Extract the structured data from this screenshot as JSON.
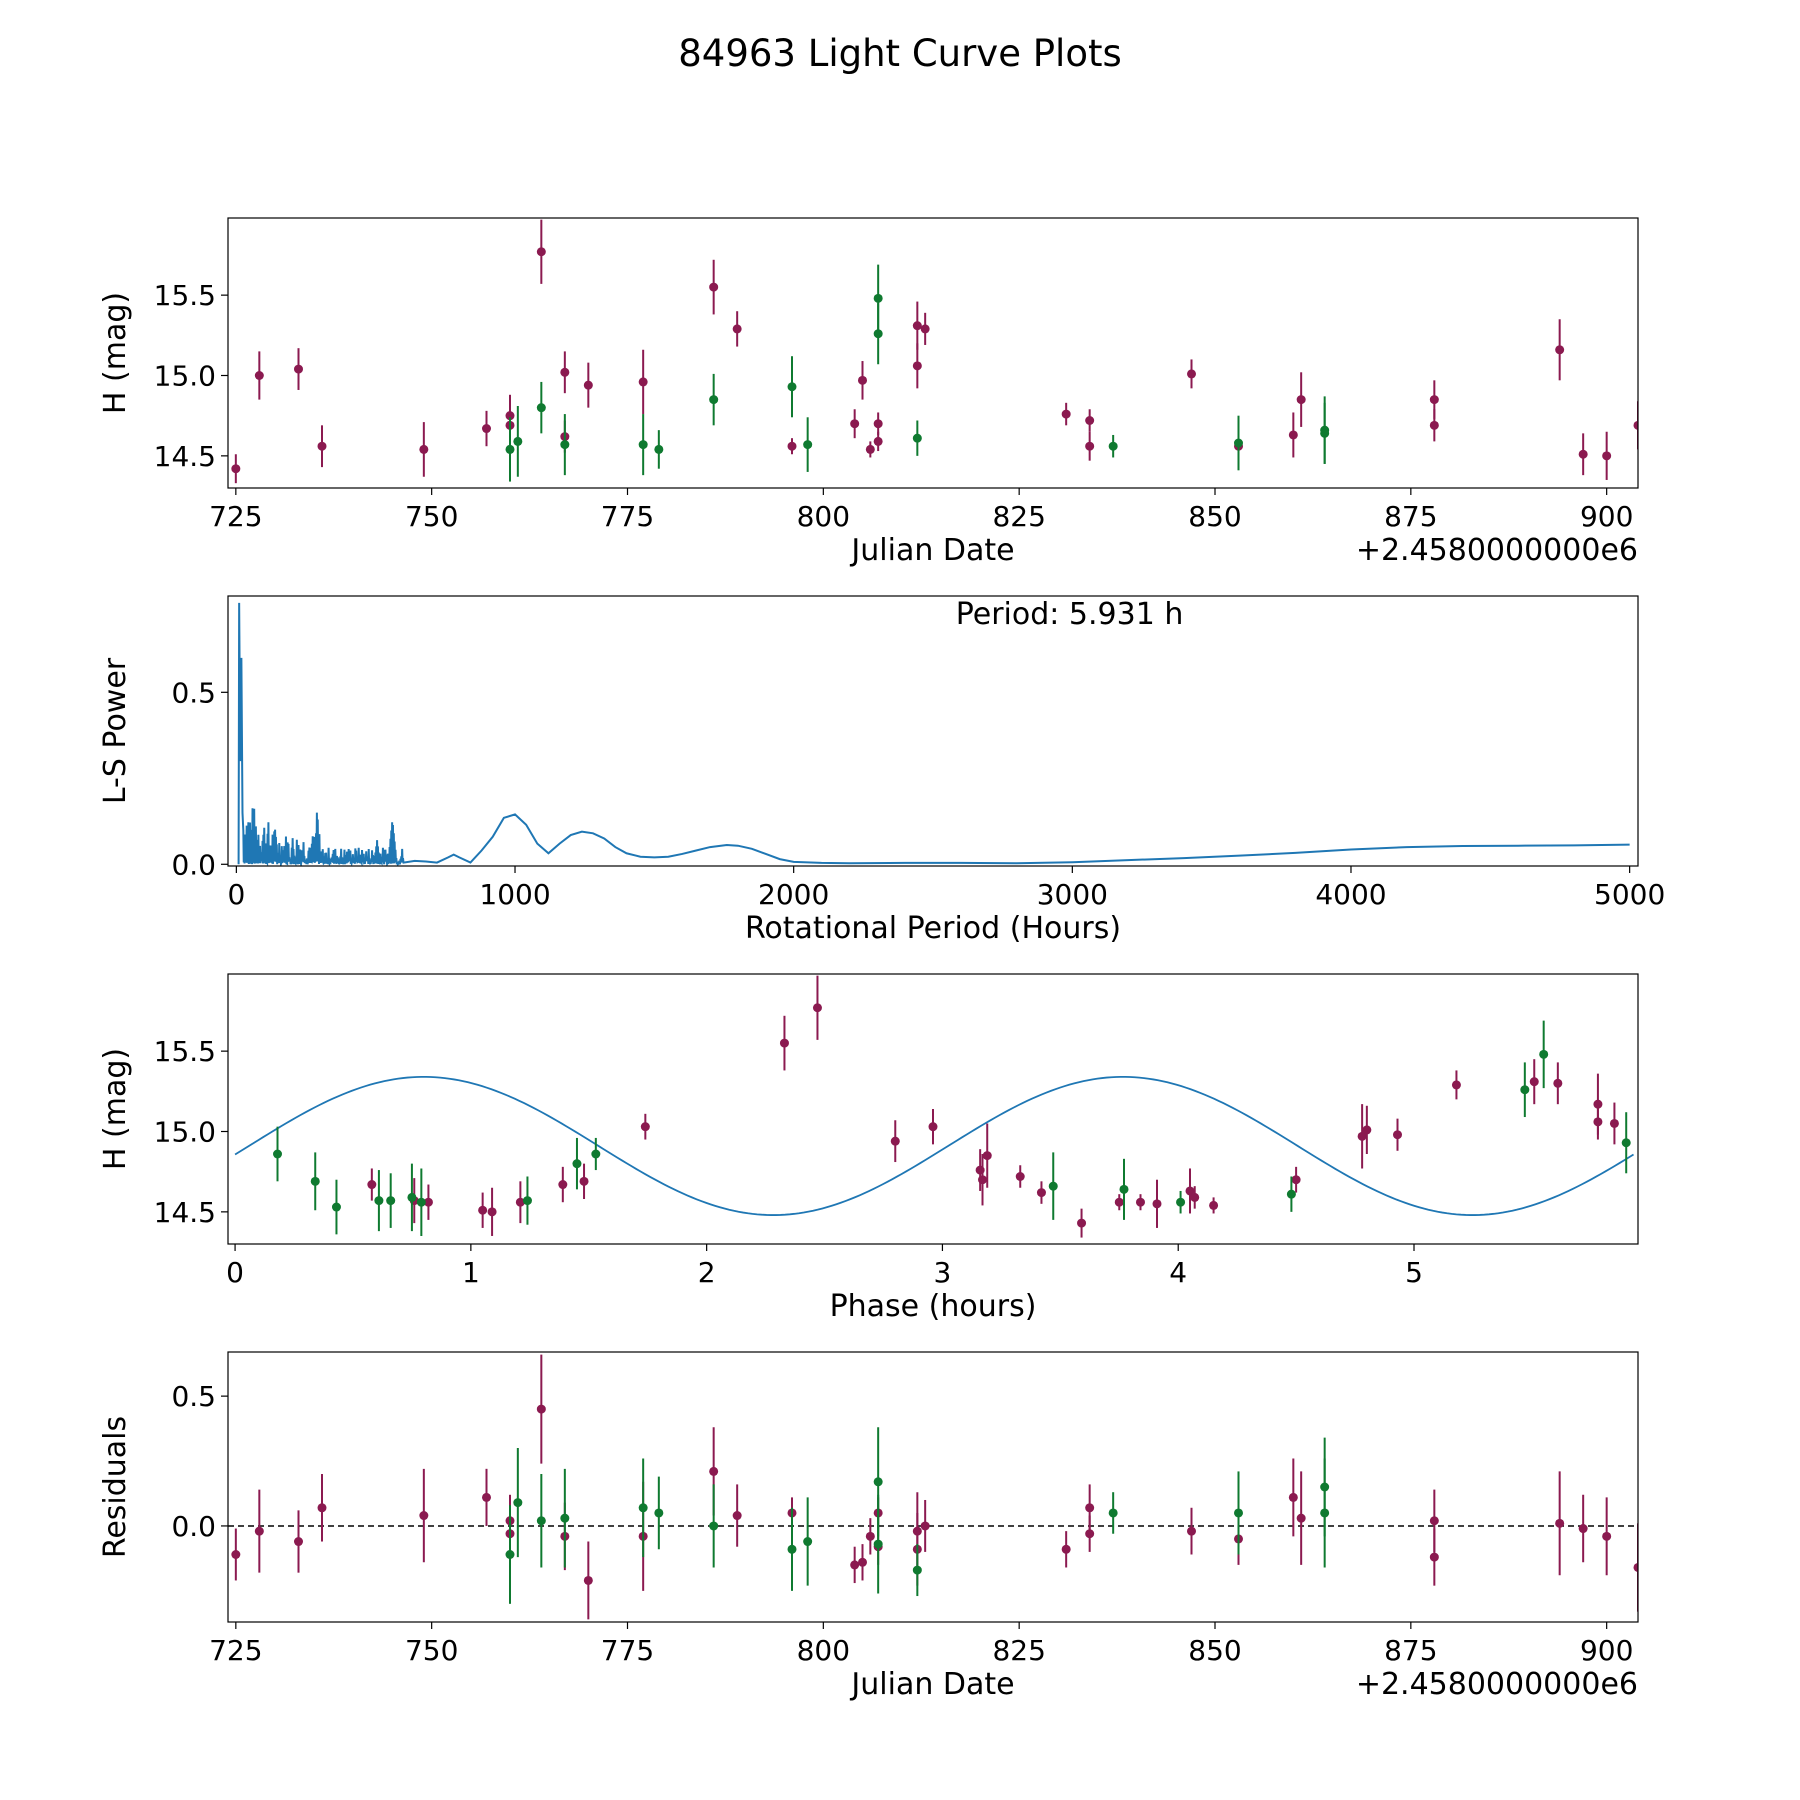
{
  "title": "84963 Light Curve Plots",
  "colors": {
    "series_a": "#8b1a50",
    "series_b": "#0f7a30",
    "line": "#1f77b4"
  },
  "chart_data": [
    {
      "id": "raw",
      "type": "scatter",
      "xlabel": "Julian Date",
      "ylabel": "H (mag)",
      "offset_label": "+2.4580000000e6",
      "xlim": [
        724,
        904
      ],
      "ylim": [
        14.3,
        15.98
      ],
      "xticks": [
        725,
        750,
        775,
        800,
        825,
        850,
        875,
        900
      ],
      "yticks": [
        14.5,
        15.0,
        15.5
      ],
      "series": [
        {
          "name": "series_a",
          "color": "#8b1a50",
          "points": [
            [
              725,
              14.42,
              0.09
            ],
            [
              728,
              15.0,
              0.15
            ],
            [
              733,
              15.04,
              0.13
            ],
            [
              736,
              14.56,
              0.13
            ],
            [
              749,
              14.54,
              0.17
            ],
            [
              757,
              14.67,
              0.11
            ],
            [
              760,
              14.75,
              0.13
            ],
            [
              760,
              14.69,
              0.1
            ],
            [
              764,
              15.77,
              0.2
            ],
            [
              767,
              15.02,
              0.13
            ],
            [
              767,
              14.62,
              0.1
            ],
            [
              770,
              14.94,
              0.14
            ],
            [
              777,
              14.96,
              0.2
            ],
            [
              786,
              15.55,
              0.17
            ],
            [
              789,
              15.29,
              0.11
            ],
            [
              796,
              14.56,
              0.05
            ],
            [
              804,
              14.7,
              0.09
            ],
            [
              805,
              14.97,
              0.12
            ],
            [
              806,
              14.54,
              0.05
            ],
            [
              807,
              14.59,
              0.06
            ],
            [
              807,
              14.7,
              0.07
            ],
            [
              812,
              15.31,
              0.15
            ],
            [
              812,
              15.06,
              0.14
            ],
            [
              813,
              15.29,
              0.1
            ],
            [
              831,
              14.76,
              0.07
            ],
            [
              834,
              14.72,
              0.07
            ],
            [
              834,
              14.56,
              0.09
            ],
            [
              847,
              15.01,
              0.09
            ],
            [
              853,
              14.56,
              0.09
            ],
            [
              860,
              14.63,
              0.14
            ],
            [
              861,
              14.85,
              0.17
            ],
            [
              878,
              14.85,
              0.12
            ],
            [
              878,
              14.69,
              0.1
            ],
            [
              894,
              15.16,
              0.19
            ],
            [
              897,
              14.51,
              0.13
            ],
            [
              900,
              14.5,
              0.15
            ],
            [
              904,
              14.69,
              0.15
            ]
          ]
        },
        {
          "name": "series_b",
          "color": "#0f7a30",
          "points": [
            [
              760,
              14.54,
              0.2
            ],
            [
              761,
              14.59,
              0.22
            ],
            [
              764,
              14.8,
              0.16
            ],
            [
              767,
              14.57,
              0.19
            ],
            [
              777,
              14.57,
              0.19
            ],
            [
              779,
              14.54,
              0.12
            ],
            [
              786,
              14.85,
              0.16
            ],
            [
              796,
              14.93,
              0.19
            ],
            [
              798,
              14.57,
              0.17
            ],
            [
              807,
              15.48,
              0.21
            ],
            [
              807,
              15.26,
              0.19
            ],
            [
              812,
              14.61,
              0.11
            ],
            [
              837,
              14.56,
              0.07
            ],
            [
              853,
              14.58,
              0.17
            ],
            [
              864,
              14.66,
              0.21
            ],
            [
              864,
              14.64,
              0.19
            ]
          ]
        }
      ]
    },
    {
      "id": "periodogram",
      "type": "line",
      "xlabel": "Rotational Period (Hours)",
      "ylabel": "L-S Power",
      "annotation": "Period: 5.931 h",
      "xlim": [
        -30,
        5030
      ],
      "ylim": [
        -0.005,
        0.78
      ],
      "xticks": [
        0,
        1000,
        2000,
        3000,
        4000,
        5000
      ],
      "yticks": [
        0.0,
        0.5
      ],
      "series": [
        {
          "name": "L-S power",
          "color": "#1f77b4",
          "x": [
            600,
            640,
            680,
            720,
            760,
            780,
            800,
            840,
            880,
            920,
            960,
            1000,
            1040,
            1080,
            1120,
            1160,
            1200,
            1240,
            1280,
            1320,
            1360,
            1400,
            1450,
            1500,
            1550,
            1600,
            1650,
            1700,
            1760,
            1800,
            1850,
            1900,
            1950,
            2000,
            2100,
            2200,
            2400,
            2600,
            2800,
            3000,
            3200,
            3400,
            3600,
            3800,
            4000,
            4200,
            4400,
            4600,
            4800,
            5000
          ],
          "y": [
            0.005,
            0.01,
            0.008,
            0.005,
            0.02,
            0.028,
            0.02,
            0.005,
            0.04,
            0.08,
            0.135,
            0.145,
            0.115,
            0.06,
            0.032,
            0.06,
            0.085,
            0.095,
            0.09,
            0.075,
            0.05,
            0.032,
            0.022,
            0.02,
            0.022,
            0.03,
            0.04,
            0.05,
            0.056,
            0.054,
            0.045,
            0.03,
            0.015,
            0.007,
            0.004,
            0.003,
            0.004,
            0.004,
            0.003,
            0.006,
            0.012,
            0.018,
            0.025,
            0.033,
            0.043,
            0.05,
            0.053,
            0.054,
            0.055,
            0.057
          ]
        }
      ]
    },
    {
      "id": "phase",
      "type": "scatter",
      "xlabel": "Phase (hours)",
      "ylabel": "H (mag)",
      "xlim": [
        -0.03,
        5.95
      ],
      "ylim": [
        14.3,
        15.98
      ],
      "xticks": [
        0,
        1,
        2,
        3,
        4,
        5
      ],
      "yticks": [
        14.5,
        15.0,
        15.5
      ],
      "fit": {
        "color": "#1f77b4",
        "mean": 14.91,
        "amplitude": 0.43,
        "harmonic": 2,
        "phase_offset": 0.8,
        "period": 5.931
      },
      "series": [
        {
          "name": "series_a",
          "color": "#8b1a50",
          "points": [
            [
              0.58,
              14.67,
              0.1
            ],
            [
              0.76,
              14.57,
              0.14
            ],
            [
              0.82,
              14.56,
              0.11
            ],
            [
              1.05,
              14.51,
              0.11
            ],
            [
              1.09,
              14.5,
              0.15
            ],
            [
              1.21,
              14.56,
              0.13
            ],
            [
              1.39,
              14.67,
              0.11
            ],
            [
              1.48,
              14.69,
              0.11
            ],
            [
              1.74,
              15.03,
              0.08
            ],
            [
              2.33,
              15.55,
              0.17
            ],
            [
              2.47,
              15.77,
              0.2
            ],
            [
              2.8,
              14.94,
              0.13
            ],
            [
              2.96,
              15.03,
              0.11
            ],
            [
              3.16,
              14.76,
              0.13
            ],
            [
              3.17,
              14.7,
              0.16
            ],
            [
              3.19,
              14.85,
              0.2
            ],
            [
              3.33,
              14.72,
              0.07
            ],
            [
              3.42,
              14.62,
              0.07
            ],
            [
              3.59,
              14.43,
              0.09
            ],
            [
              3.75,
              14.56,
              0.05
            ],
            [
              3.84,
              14.56,
              0.05
            ],
            [
              3.91,
              14.55,
              0.15
            ],
            [
              4.05,
              14.63,
              0.14
            ],
            [
              4.07,
              14.59,
              0.07
            ],
            [
              4.15,
              14.54,
              0.05
            ],
            [
              4.5,
              14.7,
              0.08
            ],
            [
              4.78,
              14.97,
              0.2
            ],
            [
              4.8,
              15.01,
              0.15
            ],
            [
              4.93,
              14.98,
              0.1
            ],
            [
              5.18,
              15.29,
              0.09
            ],
            [
              5.51,
              15.31,
              0.14
            ],
            [
              5.61,
              15.3,
              0.13
            ],
            [
              5.78,
              15.17,
              0.19
            ],
            [
              5.78,
              15.06,
              0.11
            ],
            [
              5.85,
              15.05,
              0.13
            ]
          ]
        },
        {
          "name": "series_b",
          "color": "#0f7a30",
          "points": [
            [
              0.18,
              14.86,
              0.17
            ],
            [
              0.34,
              14.69,
              0.18
            ],
            [
              0.43,
              14.53,
              0.17
            ],
            [
              0.61,
              14.57,
              0.19
            ],
            [
              0.66,
              14.57,
              0.17
            ],
            [
              0.75,
              14.59,
              0.21
            ],
            [
              0.79,
              14.56,
              0.21
            ],
            [
              1.24,
              14.57,
              0.15
            ],
            [
              1.45,
              14.8,
              0.16
            ],
            [
              1.53,
              14.86,
              0.1
            ],
            [
              3.47,
              14.66,
              0.21
            ],
            [
              3.77,
              14.64,
              0.19
            ],
            [
              4.01,
              14.56,
              0.07
            ],
            [
              4.48,
              14.61,
              0.11
            ],
            [
              5.47,
              15.26,
              0.17
            ],
            [
              5.55,
              15.48,
              0.21
            ],
            [
              5.9,
              14.93,
              0.19
            ]
          ]
        }
      ]
    },
    {
      "id": "residuals",
      "type": "scatter",
      "xlabel": "Julian Date",
      "ylabel": "Residuals",
      "offset_label": "+2.4580000000e6",
      "xlim": [
        724,
        904
      ],
      "ylim": [
        -0.37,
        0.67
      ],
      "xticks": [
        725,
        750,
        775,
        800,
        825,
        850,
        875,
        900
      ],
      "yticks": [
        0.0,
        0.5
      ],
      "zero_line": true,
      "series": [
        {
          "name": "series_a",
          "color": "#8b1a50",
          "points": [
            [
              725,
              -0.11,
              0.1
            ],
            [
              728,
              -0.02,
              0.16
            ],
            [
              733,
              -0.06,
              0.12
            ],
            [
              736,
              0.07,
              0.13
            ],
            [
              749,
              0.04,
              0.18
            ],
            [
              757,
              0.11,
              0.11
            ],
            [
              760,
              0.02,
              0.1
            ],
            [
              760,
              -0.03,
              0.1
            ],
            [
              764,
              0.45,
              0.21
            ],
            [
              767,
              -0.04,
              0.13
            ],
            [
              770,
              -0.21,
              0.15
            ],
            [
              777,
              -0.04,
              0.21
            ],
            [
              786,
              0.21,
              0.17
            ],
            [
              789,
              0.04,
              0.12
            ],
            [
              796,
              0.05,
              0.06
            ],
            [
              804,
              -0.15,
              0.07
            ],
            [
              805,
              -0.14,
              0.07
            ],
            [
              806,
              -0.04,
              0.07
            ],
            [
              807,
              0.05,
              0.06
            ],
            [
              807,
              -0.08,
              0.07
            ],
            [
              812,
              -0.02,
              0.15
            ],
            [
              812,
              -0.09,
              0.14
            ],
            [
              813,
              0.0,
              0.1
            ],
            [
              831,
              -0.09,
              0.07
            ],
            [
              834,
              0.07,
              0.09
            ],
            [
              834,
              -0.03,
              0.07
            ],
            [
              847,
              -0.02,
              0.09
            ],
            [
              853,
              -0.05,
              0.1
            ],
            [
              860,
              0.11,
              0.15
            ],
            [
              861,
              0.03,
              0.18
            ],
            [
              878,
              0.02,
              0.12
            ],
            [
              878,
              -0.12,
              0.11
            ],
            [
              894,
              0.01,
              0.2
            ],
            [
              897,
              -0.01,
              0.13
            ],
            [
              900,
              -0.04,
              0.15
            ],
            [
              904,
              -0.16,
              0.17
            ]
          ]
        },
        {
          "name": "series_b",
          "color": "#0f7a30",
          "points": [
            [
              760,
              -0.11,
              0.19
            ],
            [
              761,
              0.09,
              0.21
            ],
            [
              764,
              0.02,
              0.18
            ],
            [
              767,
              0.03,
              0.19
            ],
            [
              777,
              0.07,
              0.19
            ],
            [
              779,
              0.05,
              0.14
            ],
            [
              786,
              0.0,
              0.16
            ],
            [
              796,
              -0.09,
              0.16
            ],
            [
              798,
              -0.06,
              0.17
            ],
            [
              807,
              0.17,
              0.21
            ],
            [
              807,
              -0.07,
              0.19
            ],
            [
              812,
              -0.17,
              0.1
            ],
            [
              837,
              0.05,
              0.08
            ],
            [
              853,
              0.05,
              0.16
            ],
            [
              864,
              0.15,
              0.19
            ],
            [
              864,
              0.05,
              0.21
            ]
          ]
        }
      ]
    }
  ]
}
